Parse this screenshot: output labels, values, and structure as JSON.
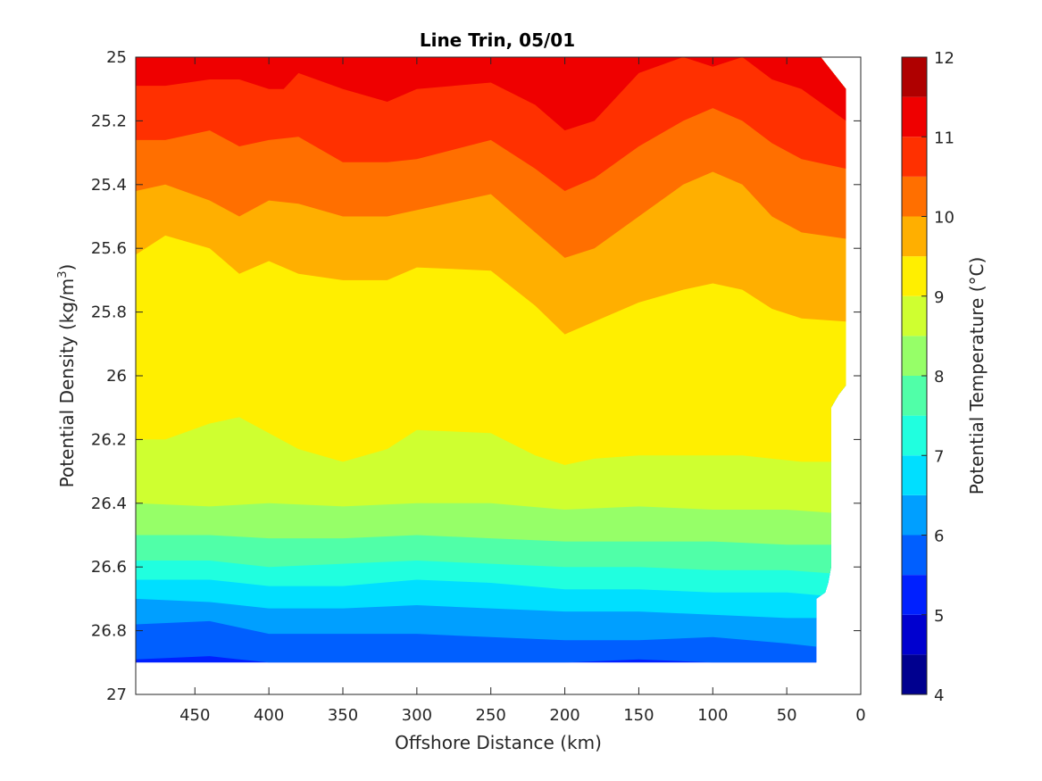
{
  "chart_data": {
    "type": "contour",
    "title": "Line Trin, 05/01",
    "xlabel": "Offshore Distance (km)",
    "ylabel": "Potential Density (kg/m",
    "ylabel_superscript": "3",
    "ylabel_suffix": ")",
    "colorbar_label": "Potential Temperature (°C)",
    "xlim": [
      490,
      0
    ],
    "ylim": [
      25,
      27
    ],
    "x_reversed": true,
    "y_reversed": true,
    "xticks": [
      450,
      400,
      350,
      300,
      250,
      200,
      150,
      100,
      50,
      0
    ],
    "yticks": [
      25,
      25.2,
      25.4,
      25.6,
      25.8,
      26,
      26.2,
      26.4,
      26.6,
      26.8,
      27
    ],
    "colorbar_ticks": [
      12,
      11,
      10,
      9,
      8,
      7,
      6,
      5,
      4
    ],
    "colorbar_range": [
      4,
      12
    ],
    "contour_levels": [
      4,
      4.5,
      5,
      5.5,
      6,
      6.5,
      7,
      7.5,
      8,
      8.5,
      9,
      9.5,
      10,
      10.5,
      11,
      11.5,
      12
    ],
    "level_colors": [
      "#00008f",
      "#0000cf",
      "#0020ff",
      "#005fff",
      "#009fff",
      "#00dfff",
      "#20ffdf",
      "#50ffa8",
      "#96ff68",
      "#cfff30",
      "#ffef00",
      "#ffaf00",
      "#ff6f00",
      "#ff3000",
      "#ef0000",
      "#af0000"
    ],
    "isolines": [
      {
        "level": 11.5,
        "x": [
          490,
          440,
          400,
          350,
          300,
          250,
          200,
          150,
          100,
          50,
          10
        ],
        "y": [
          25.0,
          25.0,
          25.0,
          24.99,
          25.0,
          25.0,
          24.98,
          25.0,
          25.0,
          25.0,
          25.0
        ]
      },
      {
        "level": 11,
        "x": [
          490,
          470,
          440,
          420,
          400,
          390,
          380,
          350,
          320,
          300,
          250,
          220,
          200,
          180,
          150,
          120,
          100,
          80,
          60,
          40,
          10
        ],
        "y": [
          25.09,
          25.09,
          25.07,
          25.07,
          25.1,
          25.1,
          25.05,
          25.1,
          25.14,
          25.1,
          25.08,
          25.15,
          25.23,
          25.2,
          25.05,
          25.0,
          25.03,
          25.0,
          25.07,
          25.1,
          25.2
        ]
      },
      {
        "level": 10.5,
        "x": [
          490,
          470,
          440,
          420,
          400,
          380,
          350,
          320,
          300,
          250,
          220,
          200,
          180,
          150,
          120,
          100,
          80,
          60,
          40,
          10
        ],
        "y": [
          25.26,
          25.26,
          25.23,
          25.28,
          25.26,
          25.25,
          25.33,
          25.33,
          25.32,
          25.26,
          25.35,
          25.42,
          25.38,
          25.28,
          25.2,
          25.16,
          25.2,
          25.27,
          25.32,
          25.35
        ]
      },
      {
        "level": 10,
        "x": [
          490,
          470,
          440,
          420,
          400,
          380,
          350,
          320,
          300,
          250,
          220,
          200,
          180,
          150,
          120,
          100,
          80,
          60,
          40,
          10
        ],
        "y": [
          25.42,
          25.4,
          25.45,
          25.5,
          25.45,
          25.46,
          25.5,
          25.5,
          25.48,
          25.43,
          25.55,
          25.63,
          25.6,
          25.5,
          25.4,
          25.36,
          25.4,
          25.5,
          25.55,
          25.57
        ]
      },
      {
        "level": 9.5,
        "x": [
          490,
          470,
          440,
          420,
          400,
          380,
          350,
          320,
          300,
          250,
          220,
          200,
          180,
          150,
          120,
          100,
          80,
          60,
          40,
          10
        ],
        "y": [
          25.62,
          25.56,
          25.6,
          25.68,
          25.64,
          25.68,
          25.7,
          25.7,
          25.66,
          25.67,
          25.78,
          25.87,
          25.83,
          25.77,
          25.73,
          25.71,
          25.73,
          25.79,
          25.82,
          25.83
        ]
      },
      {
        "level": 9,
        "x": [
          490,
          470,
          440,
          420,
          400,
          380,
          350,
          320,
          300,
          250,
          220,
          200,
          180,
          150,
          120,
          100,
          80,
          60,
          40,
          10
        ],
        "y": [
          26.2,
          26.2,
          26.15,
          26.13,
          26.18,
          26.23,
          26.27,
          26.23,
          26.17,
          26.18,
          26.25,
          26.28,
          26.26,
          26.25,
          26.25,
          26.25,
          26.25,
          26.26,
          26.27,
          26.27
        ]
      },
      {
        "level": 8.5,
        "x": [
          490,
          440,
          400,
          350,
          300,
          250,
          200,
          150,
          100,
          50,
          20
        ],
        "y": [
          26.4,
          26.41,
          26.4,
          26.41,
          26.4,
          26.4,
          26.42,
          26.41,
          26.42,
          26.42,
          26.43
        ]
      },
      {
        "level": 8,
        "x": [
          490,
          440,
          400,
          350,
          300,
          250,
          200,
          150,
          100,
          50,
          20
        ],
        "y": [
          26.5,
          26.5,
          26.51,
          26.51,
          26.5,
          26.51,
          26.52,
          26.52,
          26.52,
          26.53,
          26.53
        ]
      },
      {
        "level": 7.5,
        "x": [
          490,
          440,
          400,
          350,
          300,
          250,
          200,
          150,
          100,
          50,
          20
        ],
        "y": [
          26.58,
          26.58,
          26.6,
          26.59,
          26.58,
          26.59,
          26.6,
          26.6,
          26.61,
          26.61,
          26.62
        ]
      },
      {
        "level": 7,
        "x": [
          490,
          440,
          400,
          350,
          300,
          250,
          200,
          150,
          100,
          50,
          25
        ],
        "y": [
          26.64,
          26.64,
          26.66,
          26.66,
          26.64,
          26.65,
          26.67,
          26.67,
          26.68,
          26.68,
          26.69
        ]
      },
      {
        "level": 6.5,
        "x": [
          490,
          440,
          400,
          350,
          300,
          250,
          200,
          150,
          100,
          50,
          30
        ],
        "y": [
          26.7,
          26.71,
          26.73,
          26.73,
          26.72,
          26.73,
          26.74,
          26.74,
          26.75,
          26.76,
          26.76
        ]
      },
      {
        "level": 6,
        "x": [
          490,
          440,
          400,
          350,
          300,
          250,
          200,
          150,
          100,
          50,
          30
        ],
        "y": [
          26.78,
          26.77,
          26.81,
          26.81,
          26.81,
          26.82,
          26.83,
          26.83,
          26.82,
          26.84,
          26.85
        ]
      },
      {
        "level": 5.5,
        "x": [
          490,
          440,
          400,
          350,
          300,
          250,
          200,
          150,
          100,
          50,
          30
        ],
        "y": [
          26.89,
          26.88,
          26.9,
          26.9,
          26.9,
          26.9,
          26.9,
          26.89,
          26.9,
          26.9,
          26.9
        ]
      }
    ],
    "data_boundary": {
      "x": [
        490,
        450,
        400,
        350,
        300,
        250,
        200,
        150,
        100,
        50,
        30,
        30,
        22,
        22,
        10,
        10,
        12,
        15,
        30,
        30,
        490
      ],
      "y": [
        25.0,
        25.0,
        25.0,
        25.0,
        25.0,
        25.0,
        25.0,
        25.0,
        25.0,
        25.0,
        25.0,
        25.0,
        25.0,
        25.0,
        25.0,
        25.0,
        25.0,
        25.0,
        25.0,
        25.0,
        25.0
      ]
    },
    "data_extent": {
      "bottom_y": 26.9,
      "right_edge": {
        "x": [
          10,
          10,
          10,
          10,
          15,
          20,
          20,
          20,
          22,
          24,
          30,
          30
        ],
        "y": [
          25.0,
          25.1,
          25.9,
          26.03,
          26.06,
          26.1,
          26.5,
          26.6,
          26.65,
          26.68,
          26.7,
          26.9
        ]
      },
      "top_right_corner": {
        "x": [
          27,
          10
        ],
        "y": [
          25.0,
          25.1
        ]
      }
    }
  }
}
